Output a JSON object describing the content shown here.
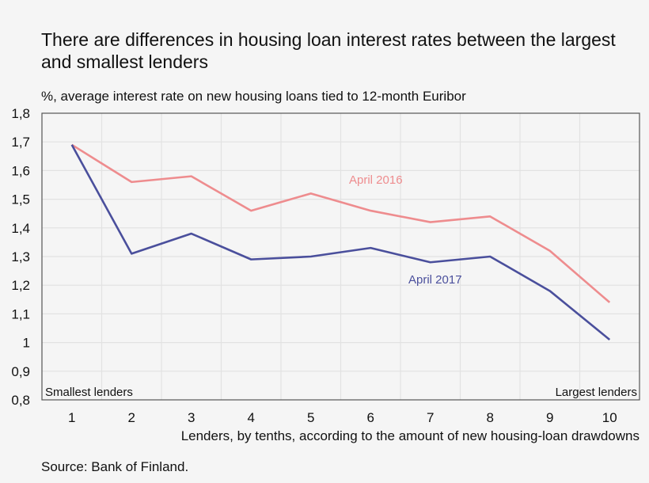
{
  "chart_data": {
    "type": "line",
    "title": "There are differences in housing loan interest rates between the largest and smallest lenders",
    "subtitle": "%, average interest rate on new housing loans tied to 12-month Euribor",
    "xlabel": "Lenders, by tenths, according to the amount of new housing-loan drawdowns",
    "ylabel": "%",
    "categories": [
      "1",
      "2",
      "3",
      "4",
      "5",
      "6",
      "7",
      "8",
      "9",
      "10"
    ],
    "yticks": [
      "1,8",
      "1,7",
      "1,6",
      "1,5",
      "1,4",
      "1,3",
      "1,2",
      "1,1",
      "1",
      "0,9",
      "0,8"
    ],
    "ylim": [
      0.8,
      1.8
    ],
    "grid": true,
    "series": [
      {
        "name": "April 2016",
        "color": "#ee8c8e",
        "values": [
          1.69,
          1.56,
          1.58,
          1.46,
          1.52,
          1.46,
          1.42,
          1.44,
          1.32,
          1.14
        ]
      },
      {
        "name": "April 2017",
        "color": "#4a4f9c",
        "values": [
          1.69,
          1.31,
          1.38,
          1.29,
          1.3,
          1.33,
          1.28,
          1.3,
          1.18,
          1.01
        ]
      }
    ],
    "annotations": [
      "Smallest lenders",
      "Largest lenders"
    ],
    "source": "Source: Bank of Finland."
  },
  "header": {
    "title": "There are differences in housing loan interest rates between the largest and smallest lenders",
    "subtitle": "%, average interest rate on new housing loans tied to 12-month Euribor"
  },
  "footer": {
    "source": "Source: Bank of Finland."
  }
}
